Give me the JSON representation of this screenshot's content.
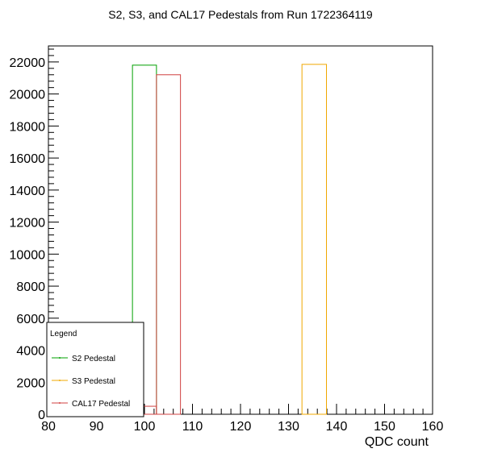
{
  "chart_data": {
    "type": "histogram",
    "title": "S2, S3, and CAL17 Pedestals from Run 1722364119",
    "xlabel": "QDC count",
    "ylabel": "",
    "xlim": [
      80,
      160
    ],
    "ylim": [
      0,
      23000
    ],
    "x_ticks": [
      80,
      90,
      100,
      110,
      120,
      130,
      140,
      150,
      160
    ],
    "y_ticks": [
      0,
      2000,
      4000,
      6000,
      8000,
      10000,
      12000,
      14000,
      16000,
      18000,
      20000,
      22000
    ],
    "grid": false,
    "legend": {
      "title": "Legend",
      "position": "bottom-left"
    },
    "series": [
      {
        "name": "S2 Pedestal",
        "color": "#00a000",
        "bins": [
          {
            "x0": 97.5,
            "x1": 102.5,
            "count": 21800
          }
        ]
      },
      {
        "name": "S3 Pedestal",
        "color": "#f0a800",
        "bins": [
          {
            "x0": 132.8,
            "x1": 137.9,
            "count": 21850
          }
        ]
      },
      {
        "name": "CAL17 Pedestal",
        "color": "#d04040",
        "bins": [
          {
            "x0": 97.5,
            "x1": 102.5,
            "count": 500
          },
          {
            "x0": 102.5,
            "x1": 107.5,
            "count": 21200
          }
        ]
      }
    ]
  }
}
